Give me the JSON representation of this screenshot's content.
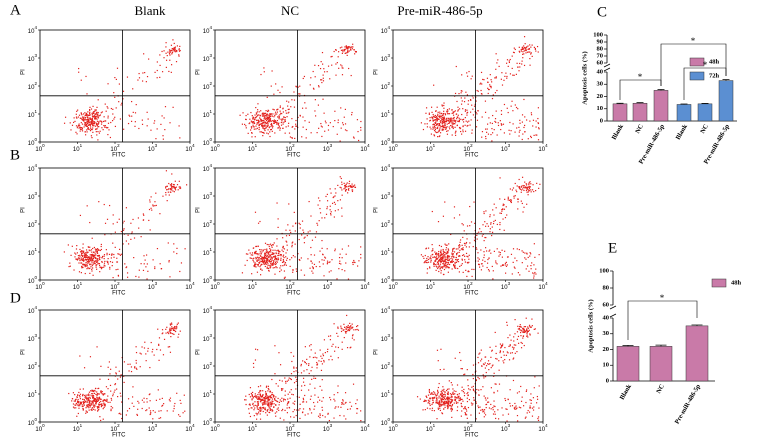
{
  "panel_labels": [
    "A",
    "B",
    "C",
    "D",
    "E"
  ],
  "flow": {
    "column_titles": [
      "Blank",
      "NC",
      "Pre-miR-486-5p"
    ],
    "x_label": "FITC",
    "y_label": "PI",
    "tick_base": "10",
    "tick_exponents": [
      "0",
      "1",
      "2",
      "3",
      "4"
    ]
  },
  "chart_data": [
    {
      "type": "bar",
      "y_label": "Apoptosis cells (%)",
      "categories": [
        "Blank",
        "NC",
        "Pre-miR-486-5p"
      ],
      "series": [
        {
          "name": "48h",
          "color": "#c97aa8",
          "values": [
            14,
            14.5,
            25
          ],
          "errors": [
            0.5,
            0.5,
            0.7
          ]
        },
        {
          "name": "72h",
          "color": "#5b8fd2",
          "values": [
            13.5,
            14,
            33
          ],
          "errors": [
            0.4,
            0.4,
            0.8
          ]
        }
      ],
      "ylim": [
        0,
        100
      ],
      "y_break": [
        40,
        60
      ],
      "yticks": [
        0,
        10,
        20,
        30,
        40,
        60,
        70,
        80,
        90,
        100
      ],
      "annotations": [
        "*",
        "*",
        "*"
      ]
    },
    {
      "type": "bar",
      "y_label": "Apoptosis cells (%)",
      "categories": [
        "Blank",
        "NC",
        "Pre-miR-486-5p"
      ],
      "series": [
        {
          "name": "48h",
          "color": "#c97aa8",
          "values": [
            22,
            22,
            35
          ],
          "errors": [
            0.6,
            0.8,
            0.6
          ]
        }
      ],
      "ylim": [
        0,
        100
      ],
      "y_break": [
        40,
        60
      ],
      "yticks": [
        0,
        10,
        20,
        30,
        40,
        60,
        80,
        100
      ],
      "annotations": [
        "*"
      ]
    }
  ]
}
